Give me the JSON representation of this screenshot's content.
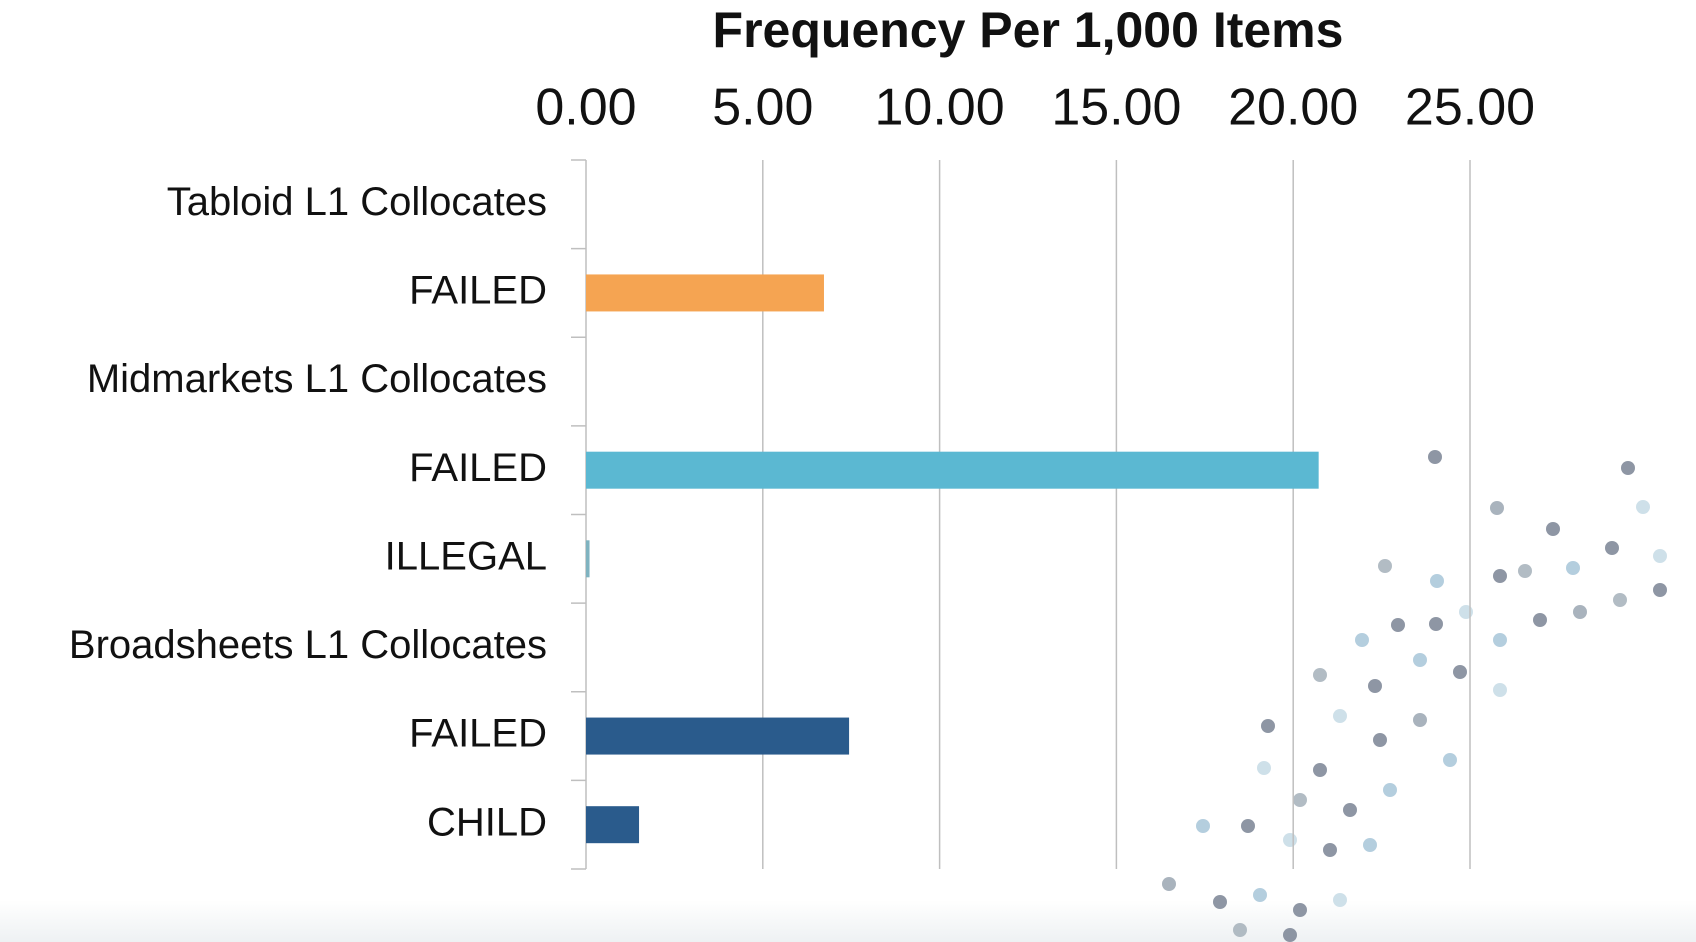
{
  "chart_data": {
    "type": "hbar",
    "title": "Frequency Per 1,000 Items",
    "categories": [
      "Tabloid L1 Collocates",
      "FAILED",
      "Midmarkets L1 Collocates",
      "FAILED",
      "ILLEGAL",
      "Broadsheets L1 Collocates",
      "FAILED",
      "CHILD"
    ],
    "values": [
      null,
      6.73,
      null,
      20.72,
      0.1,
      null,
      7.44,
      1.5
    ],
    "colors": [
      null,
      "#f5a452",
      null,
      "#5bb8d2",
      "#7fb3c0",
      null,
      "#2a5b8c",
      "#2a5b8c"
    ],
    "xlim": [
      0,
      25
    ],
    "xticks": [
      {
        "value": 0,
        "label": "0.00"
      },
      {
        "value": 5,
        "label": "5.00"
      },
      {
        "value": 10,
        "label": "10.00"
      },
      {
        "value": 15,
        "label": "15.00"
      },
      {
        "value": 20,
        "label": "20.00"
      },
      {
        "value": 25,
        "label": "25.00"
      }
    ],
    "grid": true
  }
}
